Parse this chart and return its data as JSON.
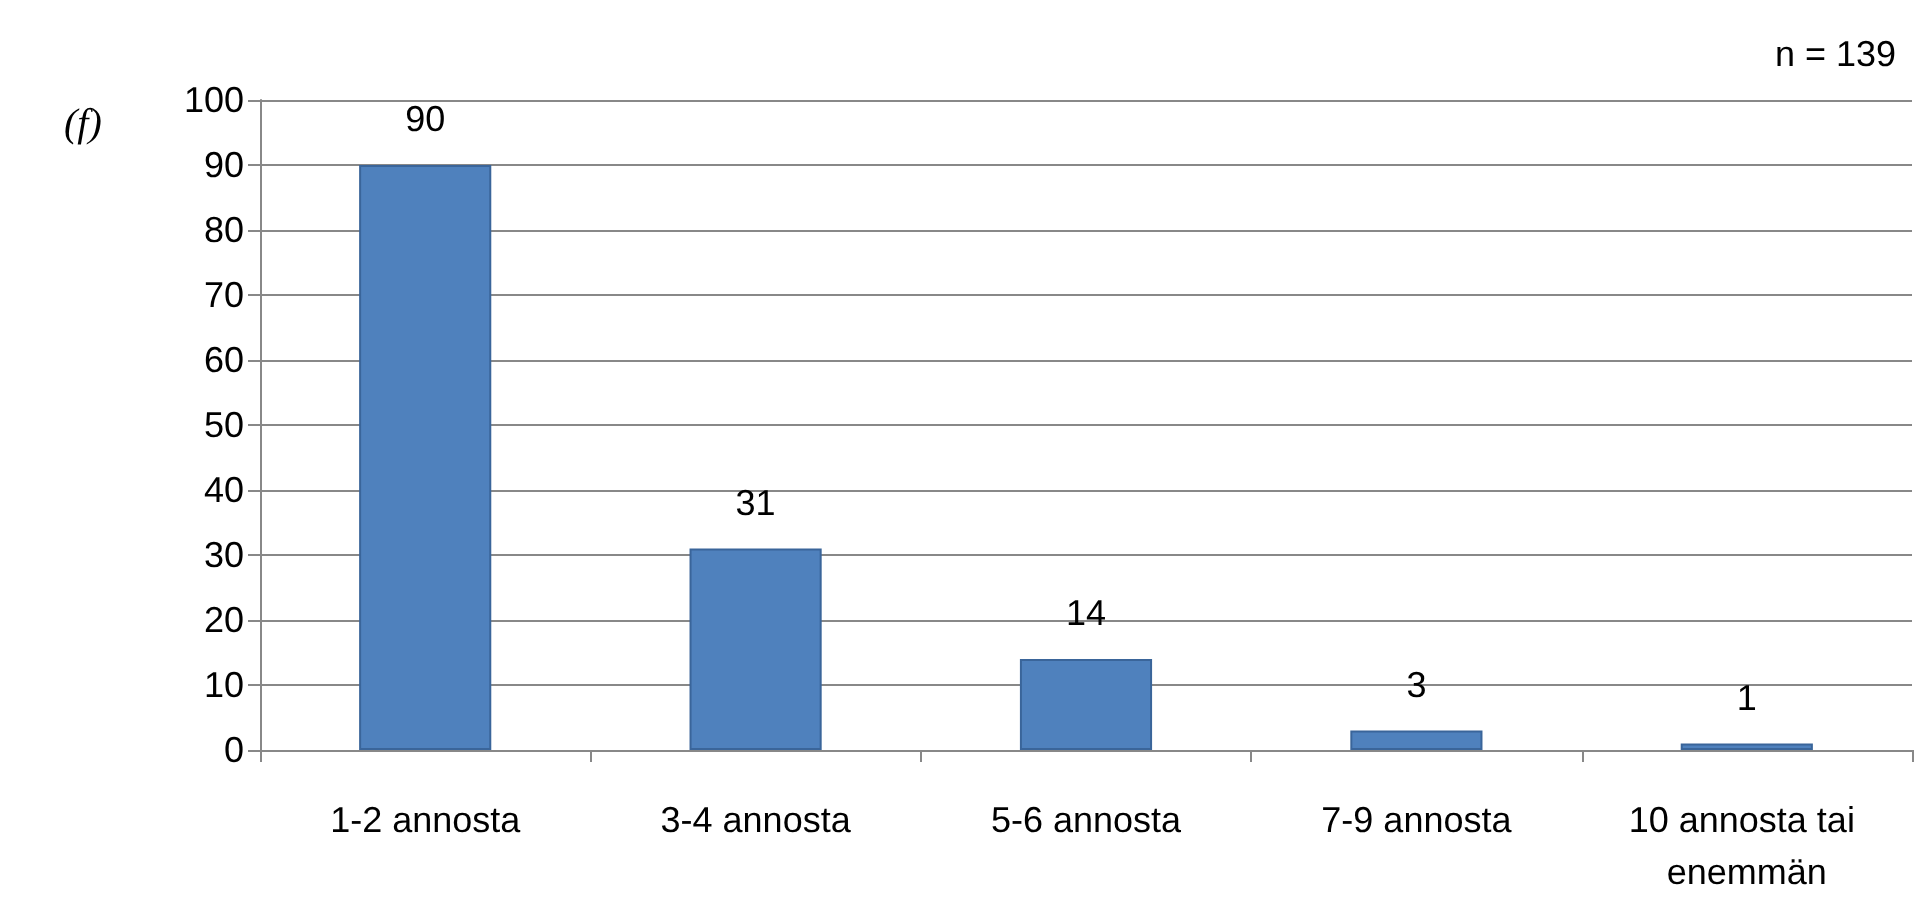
{
  "chart_data": {
    "type": "bar",
    "ylabel": "(f)",
    "annotations": [
      "n = 139"
    ],
    "categories": [
      "1-2 annosta",
      "3-4 annosta",
      "5-6 annosta",
      "7-9 annosta",
      "10 annosta tai enemmän"
    ],
    "values": [
      90,
      31,
      14,
      3,
      1
    ],
    "color": "#4f81bd",
    "ylim": [
      0,
      100
    ],
    "yticks": [
      0,
      10,
      20,
      30,
      40,
      50,
      60,
      70,
      80,
      90,
      100
    ],
    "grid": "y",
    "data_labels": true
  }
}
